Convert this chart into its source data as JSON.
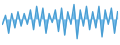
{
  "values": [
    -3,
    2,
    -8,
    3,
    -5,
    4,
    -4,
    3,
    -3,
    5,
    -6,
    7,
    -4,
    6,
    -8,
    3,
    -2,
    5,
    -7,
    6,
    -9,
    4,
    -3,
    8,
    -11,
    5,
    -4,
    7,
    -6,
    4,
    -5,
    7,
    -10,
    5,
    -3,
    6,
    -8,
    4
  ],
  "line_color": "#4a9fd4",
  "fill_color": "#5bb0e8",
  "fill_alpha": 0.85,
  "background_color": "#ffffff",
  "linewidth": 1.0,
  "ylim": [
    -14,
    10
  ]
}
